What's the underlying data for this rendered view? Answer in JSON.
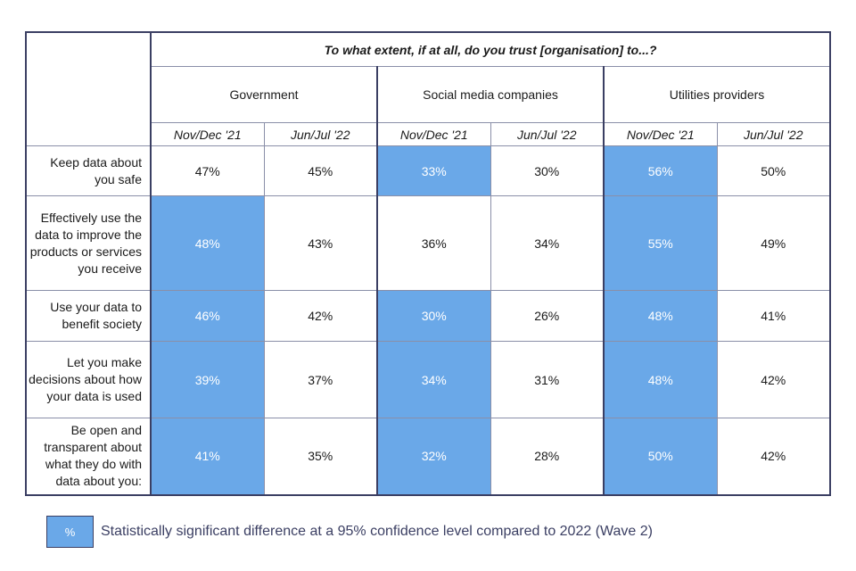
{
  "chart_data": {
    "type": "table",
    "title": "To what extent, if at all, do you trust [organisation] to...?",
    "organisations": [
      "Government",
      "Social media companies",
      "Utilities providers"
    ],
    "periods": [
      "Nov/Dec '21",
      "Jun/Jul '22"
    ],
    "rows": [
      {
        "label": "Keep data about you safe",
        "cells": [
          {
            "text": "47%",
            "value": 47,
            "significant": false
          },
          {
            "text": "45%",
            "value": 45,
            "significant": false
          },
          {
            "text": "33%",
            "value": 33,
            "significant": true
          },
          {
            "text": "30%",
            "value": 30,
            "significant": false
          },
          {
            "text": "56%",
            "value": 56,
            "significant": true
          },
          {
            "text": "50%",
            "value": 50,
            "significant": false
          }
        ]
      },
      {
        "label": "Effectively use the data to improve the products or services you receive",
        "cells": [
          {
            "text": "48%",
            "value": 48,
            "significant": true
          },
          {
            "text": "43%",
            "value": 43,
            "significant": false
          },
          {
            "text": "36%",
            "value": 36,
            "significant": false
          },
          {
            "text": "34%",
            "value": 34,
            "significant": false
          },
          {
            "text": "55%",
            "value": 55,
            "significant": true
          },
          {
            "text": "49%",
            "value": 49,
            "significant": false
          }
        ]
      },
      {
        "label": "Use your data to benefit society",
        "cells": [
          {
            "text": "46%",
            "value": 46,
            "significant": true
          },
          {
            "text": "42%",
            "value": 42,
            "significant": false
          },
          {
            "text": "30%",
            "value": 30,
            "significant": true
          },
          {
            "text": "26%",
            "value": 26,
            "significant": false
          },
          {
            "text": "48%",
            "value": 48,
            "significant": true
          },
          {
            "text": "41%",
            "value": 41,
            "significant": false
          }
        ]
      },
      {
        "label": "Let you make decisions about how your data is used",
        "cells": [
          {
            "text": "39%",
            "value": 39,
            "significant": true
          },
          {
            "text": "37%",
            "value": 37,
            "significant": false
          },
          {
            "text": "34%",
            "value": 34,
            "significant": true
          },
          {
            "text": "31%",
            "value": 31,
            "significant": false
          },
          {
            "text": "48%",
            "value": 48,
            "significant": true
          },
          {
            "text": "42%",
            "value": 42,
            "significant": false
          }
        ]
      },
      {
        "label": "Be open and transparent about what they do with data about you:",
        "cells": [
          {
            "text": "41%",
            "value": 41,
            "significant": true
          },
          {
            "text": "35%",
            "value": 35,
            "significant": false
          },
          {
            "text": "32%",
            "value": 32,
            "significant": true
          },
          {
            "text": "28%",
            "value": 28,
            "significant": false
          },
          {
            "text": "50%",
            "value": 50,
            "significant": true
          },
          {
            "text": "42%",
            "value": 42,
            "significant": false
          }
        ]
      }
    ],
    "highlight_color": "#6aa8e8",
    "border_color": "#3b3f63",
    "legend": {
      "swatch_text": "%",
      "text": "Statistically significant difference at a 95% confidence level compared to 2022 (Wave 2)"
    }
  }
}
